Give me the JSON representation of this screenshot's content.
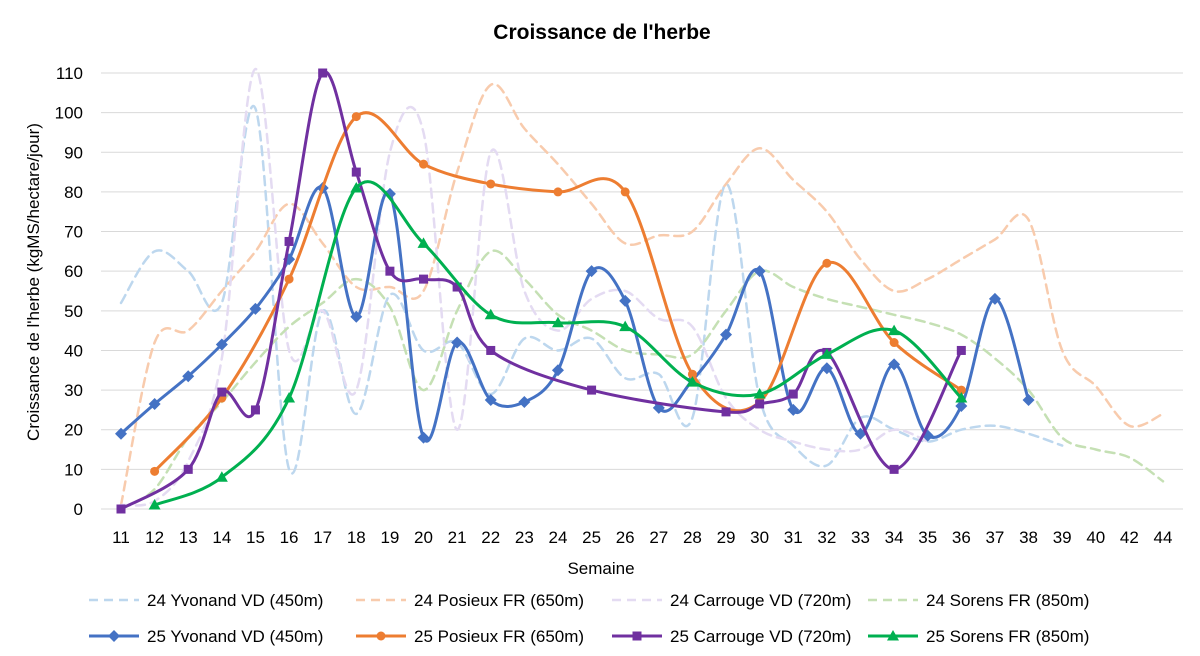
{
  "chart_data": {
    "type": "line",
    "title": "Croissance de l'herbe",
    "xlabel": "Semaine",
    "ylabel": "Croissance de l'herbe (kgMS/hectare/jour)",
    "ylim": [
      0,
      110
    ],
    "yticks": [
      "0",
      "10",
      "20",
      "30",
      "40",
      "50",
      "60",
      "70",
      "80",
      "90",
      "100",
      "110"
    ],
    "categories": [
      "11",
      "12",
      "13",
      "14",
      "15",
      "16",
      "17",
      "18",
      "19",
      "20",
      "21",
      "22",
      "23",
      "24",
      "25",
      "26",
      "27",
      "28",
      "29",
      "30",
      "31",
      "32",
      "33",
      "34",
      "35",
      "36",
      "37",
      "38",
      "39",
      "40",
      "42",
      "44"
    ],
    "grid": true,
    "legend_position": "bottom",
    "series": [
      {
        "name": "24 Yvonand VD (450m)",
        "color": "#bdd7ee",
        "style": "dashed",
        "marker": "none",
        "values": [
          52,
          65,
          60,
          52,
          101,
          10,
          50,
          24,
          54,
          40,
          42,
          29,
          43,
          40,
          43,
          33,
          34,
          23,
          82,
          28,
          16,
          11,
          23,
          20,
          17,
          20,
          21,
          19,
          16,
          null,
          null,
          null
        ]
      },
      {
        "name": "24 Posieux FR (650m)",
        "color": "#f8cbad",
        "style": "dashed",
        "marker": "none",
        "values": [
          1,
          42,
          45,
          55,
          65,
          77,
          67,
          56,
          56,
          55,
          85,
          107,
          96,
          87,
          77,
          67,
          69,
          70,
          82,
          91,
          83,
          75,
          63,
          55,
          58,
          63,
          68,
          73,
          40,
          31,
          21,
          24
        ]
      },
      {
        "name": "24 Carrouge VD (720m)",
        "color": "#e4dbf2",
        "style": "dashed",
        "marker": "none",
        "values": [
          1,
          2,
          12,
          38,
          111,
          40,
          50,
          30,
          90,
          95,
          20,
          90,
          55,
          45,
          53,
          55,
          48,
          46,
          28,
          20,
          17,
          15,
          15,
          20,
          17,
          null,
          null,
          null,
          null,
          null,
          null,
          null
        ]
      },
      {
        "name": "24 Sorens FR (850m)",
        "color": "#c5e0b4",
        "style": "dashed",
        "marker": "none",
        "values": [
          0,
          5,
          18,
          27,
          37,
          46,
          52,
          58,
          51,
          30,
          50,
          65,
          58,
          49,
          45,
          40,
          39,
          39,
          50,
          60,
          56,
          53,
          51,
          49,
          47,
          44,
          38,
          30,
          18,
          15,
          13,
          7
        ]
      },
      {
        "name": "25 Yvonand VD (450m)",
        "color": "#4472c4",
        "style": "solid",
        "marker": "diamond",
        "values": [
          19,
          26.5,
          33.5,
          41.5,
          50.5,
          63,
          81,
          48.5,
          79.5,
          18,
          42,
          27.5,
          27,
          35,
          60,
          52.5,
          25.5,
          32.5,
          44,
          60,
          25,
          35.5,
          19,
          36.5,
          18.5,
          26,
          53,
          27.5,
          null,
          null,
          null,
          null
        ]
      },
      {
        "name": "25 Posieux FR (650m)",
        "color": "#ed7d31",
        "style": "solid",
        "marker": "circle",
        "values": [
          null,
          9.5,
          null,
          28,
          null,
          58,
          null,
          99,
          null,
          87,
          null,
          82,
          null,
          80,
          null,
          80,
          null,
          34,
          null,
          27,
          null,
          62,
          null,
          42,
          null,
          30,
          null,
          null,
          null,
          null,
          null,
          null
        ]
      },
      {
        "name": "25 Carrouge VD (720m)",
        "color": "#7030a0",
        "style": "solid",
        "marker": "square",
        "values": [
          0,
          null,
          10,
          29.5,
          25,
          67.5,
          110,
          85,
          60,
          58,
          56,
          40,
          null,
          null,
          30,
          null,
          null,
          null,
          24.5,
          26.5,
          29,
          39.5,
          null,
          10,
          null,
          40,
          null,
          null,
          null,
          null,
          null,
          null
        ]
      },
      {
        "name": "25 Sorens FR (850m)",
        "color": "#00b050",
        "style": "solid",
        "marker": "triangle",
        "values": [
          null,
          1,
          null,
          8,
          null,
          28,
          null,
          81,
          null,
          67,
          null,
          49,
          null,
          47,
          null,
          46,
          null,
          32,
          null,
          29,
          null,
          39,
          null,
          45,
          null,
          28,
          null,
          null,
          null,
          null,
          null,
          null
        ]
      }
    ]
  }
}
